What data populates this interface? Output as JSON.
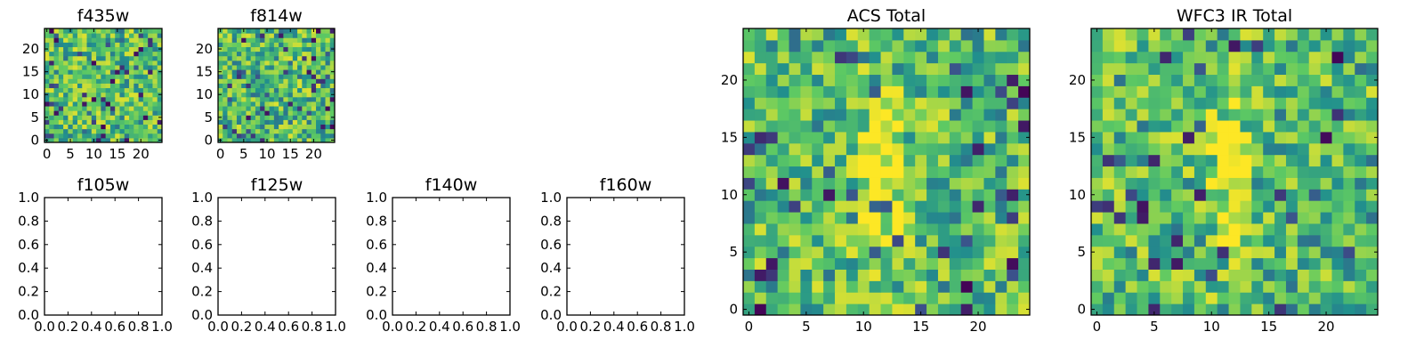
{
  "figure": {
    "colormap": "viridis",
    "colormap_stops": [
      "#440154",
      "#3b528b",
      "#21908d",
      "#5dc963",
      "#fde725"
    ],
    "background": "#ffffff"
  },
  "chart_data": [
    {
      "type": "heatmap",
      "title": "f435w",
      "xlabel": "",
      "ylabel": "",
      "grid_size": [
        25,
        25
      ],
      "xlim": [
        -0.5,
        24.5
      ],
      "ylim": [
        -0.5,
        24.5
      ],
      "xticks": [
        0,
        5,
        10,
        15,
        20
      ],
      "yticks": [
        0,
        5,
        10,
        15,
        20
      ],
      "origin": "lower",
      "value_range": [
        0,
        1
      ],
      "texture": "noise",
      "seed": 11
    },
    {
      "type": "heatmap",
      "title": "f814w",
      "xlabel": "",
      "ylabel": "",
      "grid_size": [
        25,
        25
      ],
      "xlim": [
        -0.5,
        24.5
      ],
      "ylim": [
        -0.5,
        24.5
      ],
      "xticks": [
        0,
        5,
        10,
        15,
        20
      ],
      "yticks": [
        0,
        5,
        10,
        15,
        20
      ],
      "origin": "lower",
      "value_range": [
        0,
        1
      ],
      "texture": "noise",
      "seed": 23
    },
    {
      "type": "empty",
      "title": "f105w",
      "xlim": [
        0,
        1
      ],
      "ylim": [
        0,
        1
      ],
      "xticks": [
        "0.0",
        "0.2",
        "0.4",
        "0.6",
        "0.8",
        "1.0"
      ],
      "yticks": [
        "0.0",
        "0.2",
        "0.4",
        "0.6",
        "0.8",
        "1.0"
      ]
    },
    {
      "type": "empty",
      "title": "f125w",
      "xlim": [
        0,
        1
      ],
      "ylim": [
        0,
        1
      ],
      "xticks": [
        "0.0",
        "0.2",
        "0.4",
        "0.6",
        "0.8",
        "1.0"
      ],
      "yticks": [
        "0.0",
        "0.2",
        "0.4",
        "0.6",
        "0.8",
        "1.0"
      ]
    },
    {
      "type": "empty",
      "title": "f140w",
      "xlim": [
        0,
        1
      ],
      "ylim": [
        0,
        1
      ],
      "xticks": [
        "0.0",
        "0.2",
        "0.4",
        "0.6",
        "0.8",
        "1.0"
      ],
      "yticks": [
        "0.0",
        "0.2",
        "0.4",
        "0.6",
        "0.8",
        "1.0"
      ]
    },
    {
      "type": "empty",
      "title": "f160w",
      "xlim": [
        0,
        1
      ],
      "ylim": [
        0,
        1
      ],
      "xticks": [
        "0.0",
        "0.2",
        "0.4",
        "0.6",
        "0.8",
        "1.0"
      ],
      "yticks": [
        "0.0",
        "0.2",
        "0.4",
        "0.6",
        "0.8",
        "1.0"
      ]
    },
    {
      "type": "heatmap",
      "title": "ACS Total",
      "xlabel": "",
      "ylabel": "",
      "grid_size": [
        25,
        25
      ],
      "xlim": [
        -0.5,
        24.5
      ],
      "ylim": [
        -0.5,
        24.5
      ],
      "xticks": [
        0,
        5,
        10,
        15,
        20
      ],
      "yticks": [
        0,
        5,
        10,
        15,
        20
      ],
      "origin": "lower",
      "value_range": [
        0,
        1
      ],
      "texture": "noise",
      "seed": 37,
      "central_source": [
        11.5,
        12
      ]
    },
    {
      "type": "heatmap",
      "title": "WFC3 IR Total",
      "xlabel": "",
      "ylabel": "",
      "grid_size": [
        25,
        25
      ],
      "xlim": [
        -0.5,
        24.5
      ],
      "ylim": [
        -0.5,
        24.5
      ],
      "xticks": [
        0,
        5,
        10,
        15,
        20
      ],
      "yticks": [
        0,
        5,
        10,
        15,
        20
      ],
      "origin": "lower",
      "value_range": [
        0,
        1
      ],
      "texture": "noise",
      "seed": 53,
      "central_source": [
        11.5,
        13
      ]
    }
  ]
}
